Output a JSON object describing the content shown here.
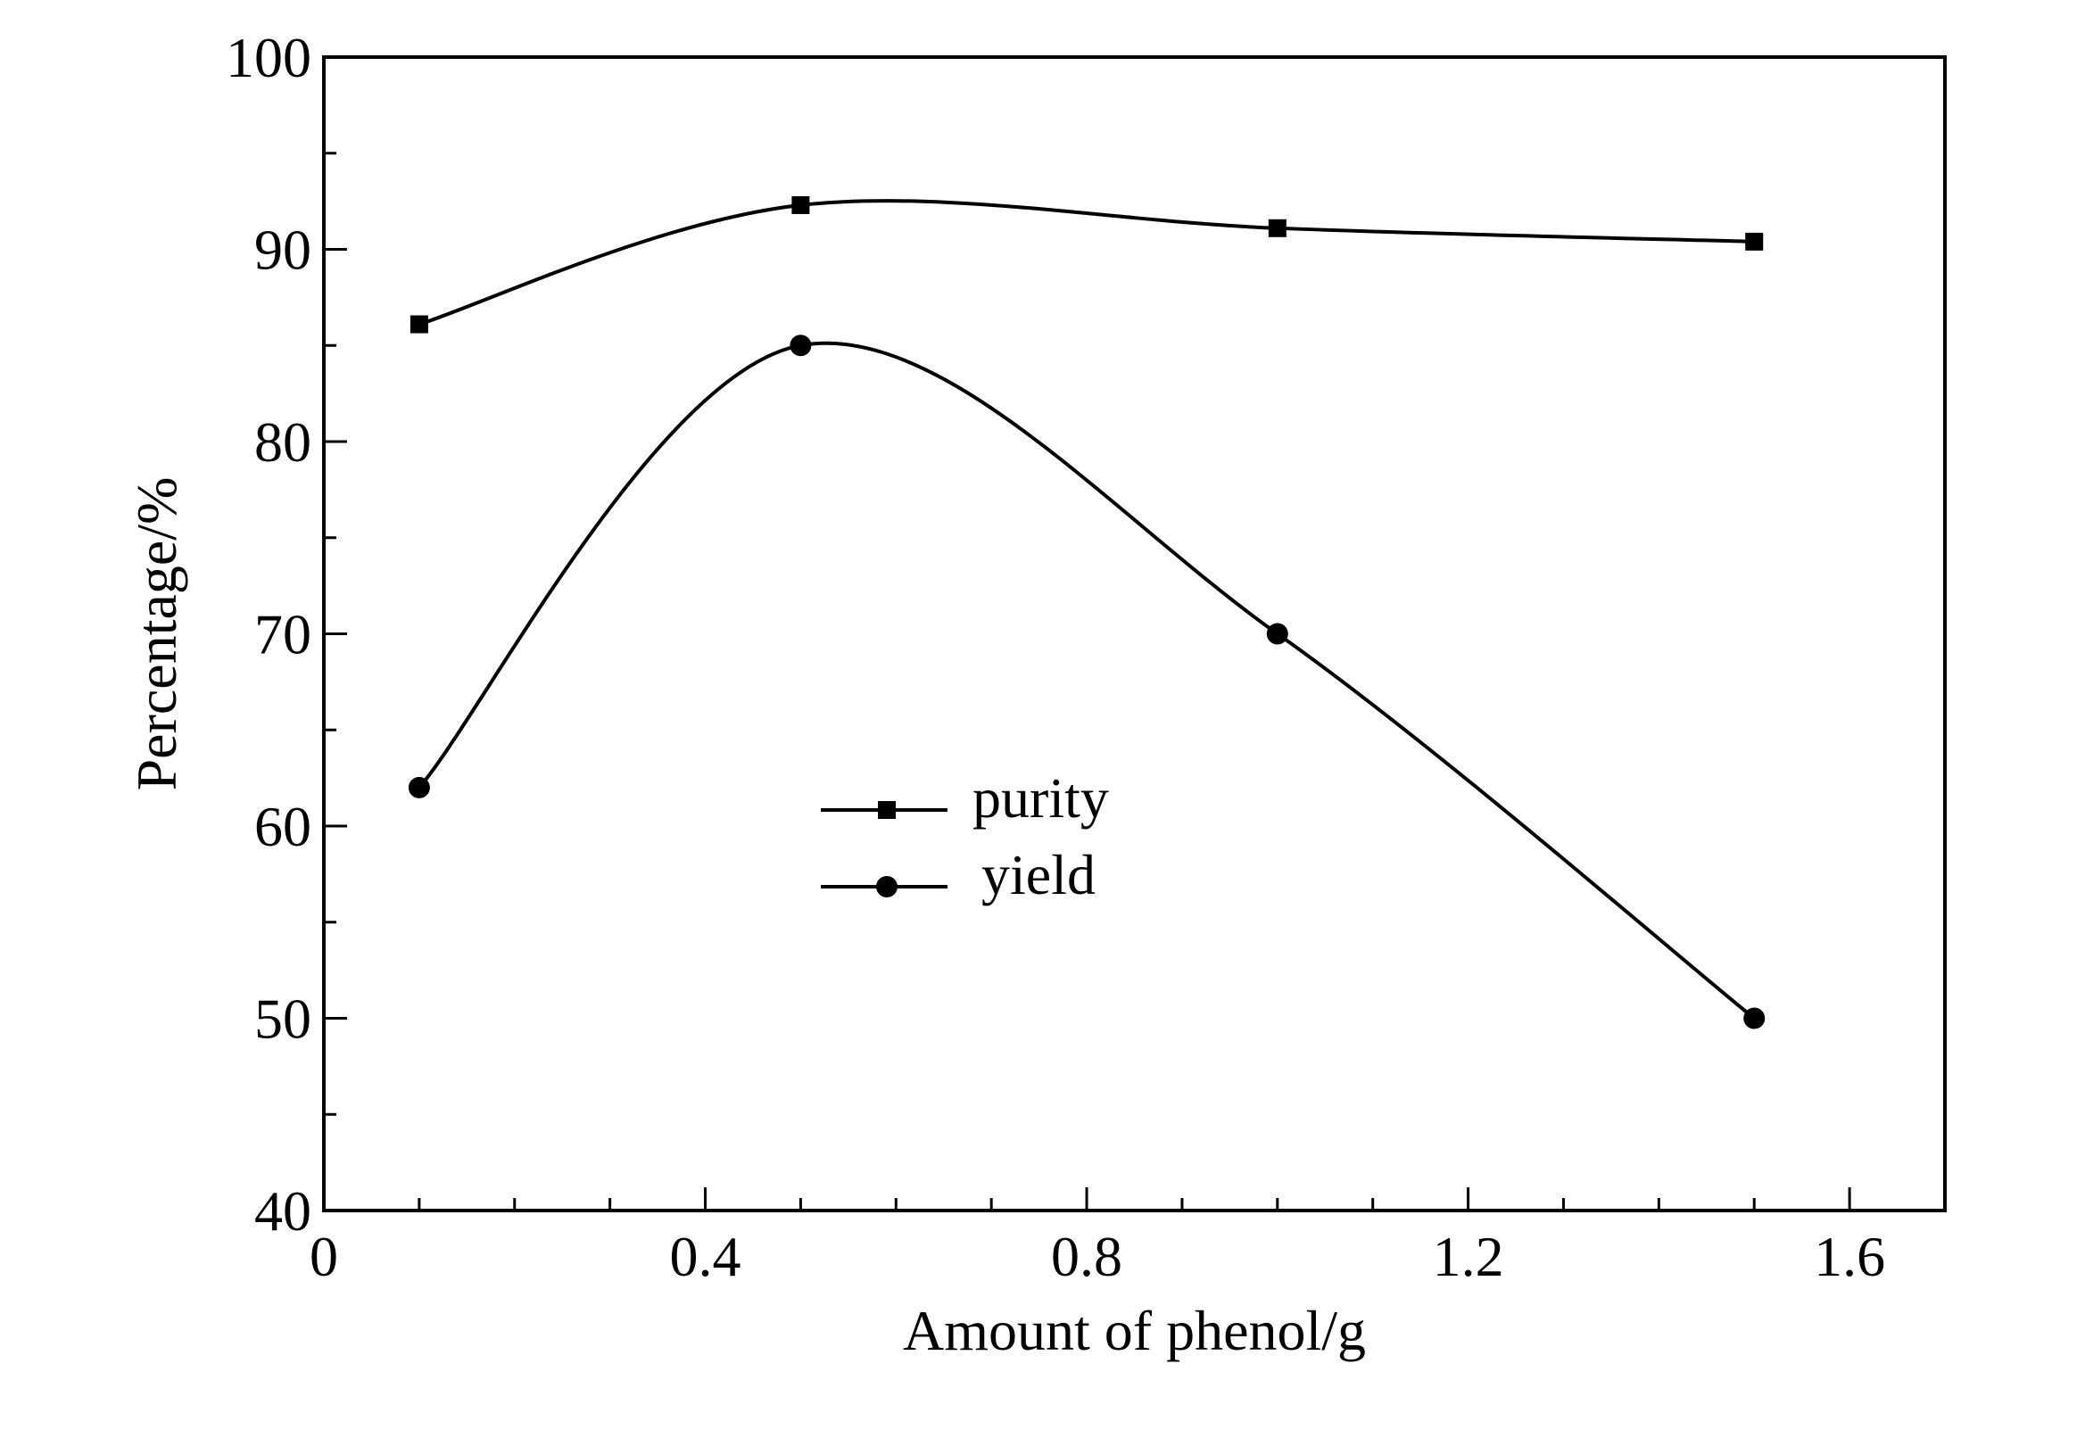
{
  "chart_data": {
    "type": "line",
    "title": "",
    "xlabel": "Amount of phenol/g",
    "ylabel": "Percentage/%",
    "xlim": [
      0,
      1.7
    ],
    "ylim": [
      40,
      100
    ],
    "x_ticks": [
      0,
      0.4,
      0.8,
      1.2,
      1.6
    ],
    "x_tick_labels": [
      "0",
      "0.4",
      "0.8",
      "1.2",
      "1.6"
    ],
    "y_ticks": [
      40,
      50,
      60,
      70,
      80,
      90,
      100
    ],
    "y_tick_labels": [
      "40",
      "50",
      "60",
      "70",
      "80",
      "90",
      "100"
    ],
    "x_minor_step": 0.1,
    "y_minor_step": 5,
    "grid": false,
    "smooth": true,
    "legend_position": "center",
    "series": [
      {
        "name": "purity",
        "marker": "square",
        "color": "#000000",
        "x": [
          0.1,
          0.5,
          1.0,
          1.5
        ],
        "y": [
          86.1,
          92.3,
          91.1,
          90.4
        ]
      },
      {
        "name": "yield",
        "marker": "circle",
        "color": "#000000",
        "x": [
          0.1,
          0.5,
          1.0,
          1.5
        ],
        "y": [
          62,
          85,
          70,
          50
        ]
      }
    ]
  }
}
